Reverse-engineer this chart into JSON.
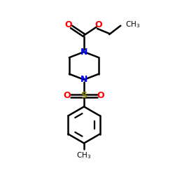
{
  "bg_color": "#ffffff",
  "bond_color": "#000000",
  "nitrogen_color": "#0000ff",
  "oxygen_color": "#ff0000",
  "sulfur_color": "#808000",
  "line_width": 1.8,
  "figsize": [
    2.5,
    2.5
  ],
  "dpi": 100,
  "xlim": [
    0,
    10
  ],
  "ylim": [
    0,
    10
  ]
}
